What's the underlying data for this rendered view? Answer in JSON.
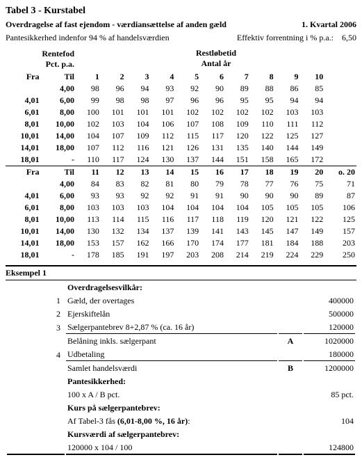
{
  "title": "Tabel 3 - Kurstabel",
  "subtitle_left": "Overdragelse af fast ejendom - værdiansættelse af anden gæld",
  "subtitle_right": "1. Kvartal 2006",
  "note_left": "Pantesikkerhed indenfor 94 % af handelsværdien",
  "note_right_label": "Effektiv forrentning i % p.a.:",
  "note_right_value": "6,50",
  "rentefod_label1": "Rentefod",
  "rentefod_label2": "Pct. p.a.",
  "restlobetid_label1": "Restløbetid",
  "restlobetid_label2": "Antal år",
  "fra": "Fra",
  "til": "Til",
  "o20": "o. 20",
  "cols1": [
    "1",
    "2",
    "3",
    "4",
    "5",
    "6",
    "7",
    "8",
    "9",
    "10"
  ],
  "cols2": [
    "11",
    "12",
    "13",
    "14",
    "15",
    "16",
    "17",
    "18",
    "19",
    "20"
  ],
  "rows_fra": [
    "",
    "4,01",
    "6,01",
    "8,01",
    "10,01",
    "14,01",
    "18,01"
  ],
  "rows_til": [
    "4,00",
    "6,00",
    "8,00",
    "10,00",
    "14,00",
    "18,00",
    "-"
  ],
  "data1": [
    [
      "98",
      "96",
      "94",
      "93",
      "92",
      "90",
      "89",
      "88",
      "86",
      "85"
    ],
    [
      "99",
      "98",
      "98",
      "97",
      "96",
      "96",
      "95",
      "95",
      "94",
      "94"
    ],
    [
      "100",
      "101",
      "101",
      "101",
      "102",
      "102",
      "102",
      "102",
      "103",
      "103"
    ],
    [
      "102",
      "103",
      "104",
      "106",
      "107",
      "108",
      "109",
      "110",
      "111",
      "112"
    ],
    [
      "104",
      "107",
      "109",
      "112",
      "115",
      "117",
      "120",
      "122",
      "125",
      "127"
    ],
    [
      "107",
      "112",
      "116",
      "121",
      "126",
      "131",
      "135",
      "140",
      "144",
      "149"
    ],
    [
      "110",
      "117",
      "124",
      "130",
      "137",
      "144",
      "151",
      "158",
      "165",
      "172"
    ]
  ],
  "data2": [
    [
      "84",
      "83",
      "82",
      "81",
      "80",
      "79",
      "78",
      "77",
      "76",
      "75"
    ],
    [
      "93",
      "93",
      "92",
      "92",
      "91",
      "91",
      "90",
      "90",
      "90",
      "89"
    ],
    [
      "103",
      "103",
      "103",
      "104",
      "104",
      "104",
      "104",
      "105",
      "105",
      "105"
    ],
    [
      "113",
      "114",
      "115",
      "116",
      "117",
      "118",
      "119",
      "120",
      "121",
      "122"
    ],
    [
      "130",
      "132",
      "134",
      "137",
      "139",
      "141",
      "143",
      "145",
      "147",
      "149"
    ],
    [
      "153",
      "157",
      "162",
      "166",
      "170",
      "174",
      "177",
      "181",
      "184",
      "188"
    ],
    [
      "178",
      "185",
      "191",
      "197",
      "203",
      "208",
      "214",
      "219",
      "224",
      "229"
    ]
  ],
  "data2_o20": [
    "71",
    "87",
    "106",
    "125",
    "157",
    "203",
    "250"
  ],
  "example_title": "Eksempel 1",
  "example": {
    "heading": "Overdragelsesvilkår:",
    "r1_num": "1",
    "r1_label": "Gæld, der overtages",
    "r1_val": "400000",
    "r2_num": "2",
    "r2_label": "Ejerskiftelån",
    "r2_val": "500000",
    "r3_num": "3",
    "r3_label": "Sælgerpantebrev 8+2,87 % (ca. 16 år)",
    "r3_val": "120000",
    "r4_label": "Belåning inkls. sælgerpant",
    "r4_mid": "A",
    "r4_val": "1020000",
    "r5_num": "4",
    "r5_label": "Udbetaling",
    "r5_val": "180000",
    "r6_label": "Samlet handelsværdi",
    "r6_mid": "B",
    "r6_val": "1200000",
    "r7_label": "Pantesikkerhed:",
    "r8_label": "100 x A / B pct.",
    "r8_val": "85 pct.",
    "r9_label": "Kurs på sælgerpantebrev:",
    "r10_label": "Af Tabel-3 fås (6,01-8,00 %, 16 år):",
    "r10_val": "104",
    "r11_label": "Kursværdi af sælgerpantebrev:",
    "r12_label": "120000 x 104 / 100",
    "r12_val": "124800"
  }
}
